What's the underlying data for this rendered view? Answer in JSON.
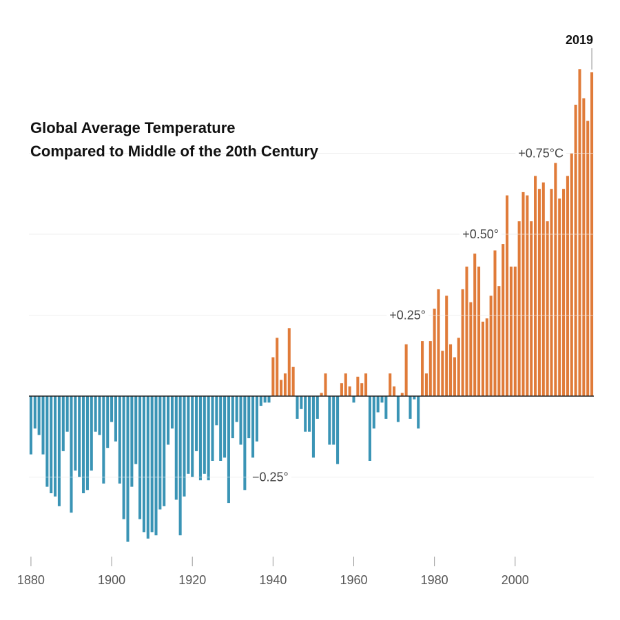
{
  "chart_data": {
    "type": "bar",
    "title_lines": [
      "Global Average Temperature",
      "Compared to Middle of the 20th Century"
    ],
    "x_tick_labels": [
      "1880",
      "1900",
      "1920",
      "1940",
      "1960",
      "1980",
      "2000"
    ],
    "x_ticks": [
      1880,
      1900,
      1920,
      1940,
      1960,
      1980,
      2000
    ],
    "y_gridlines": [
      {
        "value": -0.25,
        "label": "−0.25°"
      },
      {
        "value": 0.25,
        "label": "+0.25°"
      },
      {
        "value": 0.5,
        "label": "+0.50°"
      },
      {
        "value": 0.75,
        "label": "+0.75°C"
      }
    ],
    "highlight": {
      "label": "2019",
      "year": 2019
    },
    "ylim": [
      -0.5,
      1.0
    ],
    "xlim": [
      1879.5,
      2019.5
    ],
    "colors": {
      "positive": "#e07b39",
      "negative": "#3a94b5",
      "baseline": "#222222"
    },
    "years_start": 1880,
    "years_end": 2019,
    "values": [
      -0.18,
      -0.1,
      -0.12,
      -0.18,
      -0.28,
      -0.3,
      -0.31,
      -0.34,
      -0.17,
      -0.11,
      -0.36,
      -0.23,
      -0.25,
      -0.3,
      -0.29,
      -0.23,
      -0.11,
      -0.12,
      -0.27,
      -0.16,
      -0.08,
      -0.14,
      -0.27,
      -0.38,
      -0.45,
      -0.28,
      -0.21,
      -0.38,
      -0.42,
      -0.44,
      -0.42,
      -0.43,
      -0.35,
      -0.34,
      -0.15,
      -0.1,
      -0.32,
      -0.43,
      -0.31,
      -0.24,
      -0.25,
      -0.17,
      -0.26,
      -0.24,
      -0.26,
      -0.2,
      -0.09,
      -0.2,
      -0.19,
      -0.33,
      -0.13,
      -0.08,
      -0.15,
      -0.29,
      -0.13,
      -0.19,
      -0.14,
      -0.03,
      -0.02,
      -0.02,
      0.12,
      0.18,
      0.05,
      0.07,
      0.21,
      0.09,
      -0.07,
      -0.04,
      -0.11,
      -0.11,
      -0.19,
      -0.07,
      0.01,
      0.07,
      -0.15,
      -0.15,
      -0.21,
      0.04,
      0.07,
      0.03,
      -0.02,
      0.06,
      0.04,
      0.07,
      -0.2,
      -0.1,
      -0.05,
      -0.02,
      -0.07,
      0.07,
      0.03,
      -0.08,
      0.01,
      0.16,
      -0.07,
      -0.01,
      -0.1,
      0.17,
      0.07,
      0.17,
      0.27,
      0.33,
      0.14,
      0.31,
      0.16,
      0.12,
      0.18,
      0.33,
      0.4,
      0.29,
      0.44,
      0.4,
      0.23,
      0.24,
      0.31,
      0.45,
      0.34,
      0.47,
      0.62,
      0.4,
      0.4,
      0.54,
      0.63,
      0.62,
      0.54,
      0.68,
      0.64,
      0.66,
      0.54,
      0.64,
      0.72,
      0.61,
      0.64,
      0.68,
      0.75,
      0.9,
      1.01,
      0.92,
      0.85,
      1.0
    ]
  }
}
